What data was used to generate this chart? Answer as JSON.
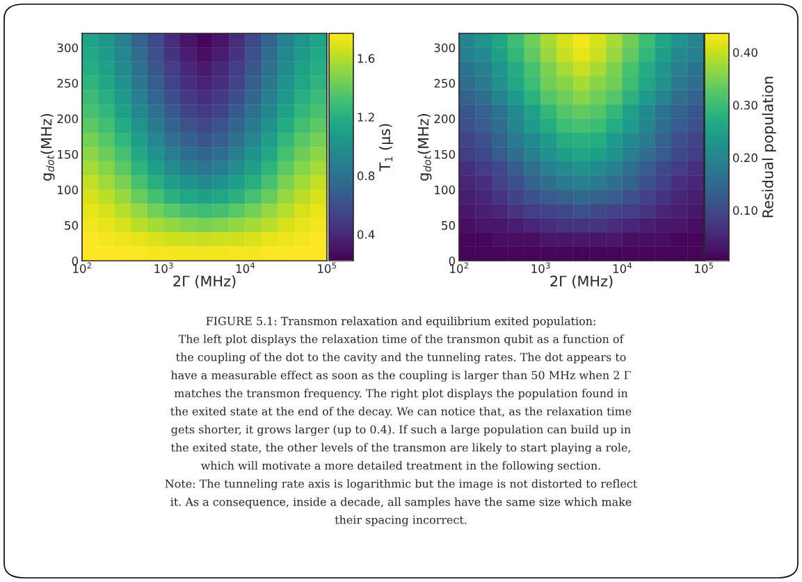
{
  "chart_data": [
    {
      "type": "heatmap",
      "xlabel": "2Γ (MHz)",
      "ylabel": "g$_{dot}$(MHz)",
      "clabel": "T$_{1}$ (μs)",
      "log": "x",
      "xlim": [
        100,
        100000
      ],
      "xticks": [
        {
          "value": 100,
          "label": "10$^{2}$"
        },
        {
          "value": 1000,
          "label": "10$^{3}$"
        },
        {
          "value": 10000,
          "label": "10$^{4}$"
        },
        {
          "value": 100000,
          "label": "10$^{5}$"
        }
      ],
      "ylim": [
        0,
        320
      ],
      "yticks": [
        0,
        50,
        100,
        150,
        200,
        250,
        300
      ],
      "clim": [
        0.22,
        1.77
      ],
      "cticks": [
        0.4,
        0.8,
        1.2,
        1.6
      ],
      "x": [
        126,
        200,
        316,
        501,
        794,
        1260,
        2000,
        3160,
        5010,
        7940,
        12600,
        20000,
        31600,
        50100,
        79400
      ],
      "y": [
        310,
        290,
        270,
        250,
        230,
        210,
        190,
        170,
        150,
        130,
        110,
        90,
        70,
        50,
        30,
        10
      ],
      "cells": [
        [
          1.12,
          1.03,
          0.9,
          0.72,
          0.57,
          0.42,
          0.3,
          0.24,
          0.3,
          0.42,
          0.57,
          0.72,
          0.9,
          1.03,
          1.12
        ],
        [
          1.15,
          1.06,
          0.93,
          0.76,
          0.6,
          0.45,
          0.34,
          0.28,
          0.34,
          0.45,
          0.6,
          0.76,
          0.93,
          1.06,
          1.15
        ],
        [
          1.18,
          1.1,
          0.97,
          0.8,
          0.64,
          0.5,
          0.39,
          0.33,
          0.39,
          0.5,
          0.64,
          0.8,
          0.97,
          1.1,
          1.18
        ],
        [
          1.22,
          1.14,
          1.01,
          0.84,
          0.68,
          0.54,
          0.43,
          0.37,
          0.43,
          0.54,
          0.68,
          0.84,
          1.01,
          1.14,
          1.22
        ],
        [
          1.27,
          1.19,
          1.06,
          0.89,
          0.73,
          0.59,
          0.48,
          0.42,
          0.48,
          0.59,
          0.73,
          0.89,
          1.06,
          1.19,
          1.27
        ],
        [
          1.32,
          1.24,
          1.11,
          0.94,
          0.79,
          0.65,
          0.54,
          0.48,
          0.54,
          0.65,
          0.79,
          0.94,
          1.11,
          1.24,
          1.32
        ],
        [
          1.38,
          1.3,
          1.17,
          1.01,
          0.86,
          0.72,
          0.61,
          0.55,
          0.61,
          0.72,
          0.86,
          1.01,
          1.17,
          1.3,
          1.38
        ],
        [
          1.44,
          1.36,
          1.24,
          1.08,
          0.93,
          0.79,
          0.69,
          0.63,
          0.69,
          0.79,
          0.93,
          1.08,
          1.24,
          1.36,
          1.44
        ],
        [
          1.5,
          1.42,
          1.31,
          1.15,
          1.01,
          0.88,
          0.77,
          0.72,
          0.77,
          0.88,
          1.01,
          1.15,
          1.31,
          1.42,
          1.5
        ],
        [
          1.56,
          1.49,
          1.38,
          1.23,
          1.1,
          0.98,
          0.88,
          0.83,
          0.88,
          0.98,
          1.1,
          1.23,
          1.38,
          1.49,
          1.56
        ],
        [
          1.62,
          1.55,
          1.46,
          1.32,
          1.2,
          1.09,
          1.01,
          0.96,
          1.01,
          1.09,
          1.2,
          1.32,
          1.46,
          1.55,
          1.62
        ],
        [
          1.67,
          1.61,
          1.53,
          1.41,
          1.31,
          1.21,
          1.14,
          1.1,
          1.14,
          1.21,
          1.31,
          1.41,
          1.53,
          1.61,
          1.67
        ],
        [
          1.71,
          1.67,
          1.6,
          1.52,
          1.44,
          1.37,
          1.31,
          1.28,
          1.31,
          1.37,
          1.44,
          1.52,
          1.6,
          1.67,
          1.71
        ],
        [
          1.74,
          1.71,
          1.67,
          1.61,
          1.56,
          1.52,
          1.48,
          1.46,
          1.48,
          1.52,
          1.56,
          1.61,
          1.67,
          1.71,
          1.74
        ],
        [
          1.76,
          1.75,
          1.73,
          1.71,
          1.68,
          1.66,
          1.65,
          1.64,
          1.65,
          1.66,
          1.68,
          1.71,
          1.73,
          1.75,
          1.76
        ],
        [
          1.77,
          1.77,
          1.76,
          1.76,
          1.75,
          1.75,
          1.74,
          1.74,
          1.74,
          1.75,
          1.75,
          1.76,
          1.76,
          1.77,
          1.77
        ]
      ],
      "annotations": [
        "FIGURE 5.1: Transmon relaxation and equilibrium exited population:",
        "The left plot displays the relaxation time of the transmon qubit as a function of",
        "the coupling of the dot to the cavity and the tunneling rates. The dot appears to",
        "have a measurable effect as soon as the coupling is larger than 50 MHz when 2 Γ",
        "matches the transmon frequency. The right plot displays the population found in",
        "the exited state at the end of the decay. We can notice that, as the relaxation time",
        "gets shorter, it grows larger (up to 0.4). If such a large population can build up in",
        "the exited state, the other levels of the transmon are likely to start playing a role,",
        "which will motivate a more detailed treatment in the following section.",
        "Note: The tunneling rate axis is logarithmic but the image is not distorted to reflect",
        "it. As a consequence, inside a decade, all samples have the same size which make",
        "their spacing incorrect."
      ]
    },
    {
      "type": "heatmap",
      "xlabel": "2Γ (MHz)",
      "ylabel": "g$_{dot}$(MHz)",
      "clabel": "Residual population",
      "log": "x",
      "xlim": [
        100,
        100000
      ],
      "xticks": [
        {
          "value": 100,
          "label": "10$^{2}$"
        },
        {
          "value": 1000,
          "label": "10$^{3}$"
        },
        {
          "value": 10000,
          "label": "10$^{4}$"
        },
        {
          "value": 100000,
          "label": "10$^{5}$"
        }
      ],
      "ylim": [
        0,
        320
      ],
      "yticks": [
        0,
        50,
        100,
        150,
        200,
        250,
        300
      ],
      "clim": [
        0.004,
        0.436
      ],
      "cticks": [
        {
          "value": 0.1,
          "label": "0.10"
        },
        {
          "value": 0.2,
          "label": "0.20"
        },
        {
          "value": 0.3,
          "label": "0.30"
        },
        {
          "value": 0.4,
          "label": "0.40"
        }
      ],
      "x": [
        126,
        200,
        316,
        501,
        794,
        1260,
        2000,
        3160,
        5010,
        7940,
        12600,
        20000,
        31600,
        50100,
        79400
      ],
      "y": [
        310,
        290,
        270,
        250,
        230,
        210,
        190,
        170,
        150,
        130,
        110,
        90,
        70,
        50,
        30,
        10
      ],
      "cells": [
        [
          0.2,
          0.22,
          0.26,
          0.3,
          0.34,
          0.38,
          0.41,
          0.43,
          0.41,
          0.38,
          0.34,
          0.3,
          0.26,
          0.22,
          0.2
        ],
        [
          0.19,
          0.21,
          0.25,
          0.29,
          0.33,
          0.37,
          0.4,
          0.42,
          0.4,
          0.37,
          0.33,
          0.29,
          0.25,
          0.21,
          0.19
        ],
        [
          0.17,
          0.19,
          0.23,
          0.27,
          0.31,
          0.35,
          0.38,
          0.4,
          0.38,
          0.35,
          0.31,
          0.27,
          0.23,
          0.19,
          0.17
        ],
        [
          0.16,
          0.18,
          0.22,
          0.26,
          0.3,
          0.34,
          0.36,
          0.38,
          0.36,
          0.34,
          0.3,
          0.26,
          0.22,
          0.18,
          0.16
        ],
        [
          0.14,
          0.16,
          0.2,
          0.24,
          0.28,
          0.32,
          0.34,
          0.36,
          0.34,
          0.32,
          0.28,
          0.24,
          0.2,
          0.16,
          0.14
        ],
        [
          0.12,
          0.14,
          0.17,
          0.21,
          0.25,
          0.29,
          0.32,
          0.33,
          0.32,
          0.29,
          0.25,
          0.21,
          0.17,
          0.14,
          0.12
        ],
        [
          0.11,
          0.13,
          0.16,
          0.2,
          0.24,
          0.27,
          0.3,
          0.31,
          0.3,
          0.27,
          0.24,
          0.2,
          0.16,
          0.13,
          0.11
        ],
        [
          0.09,
          0.11,
          0.14,
          0.18,
          0.21,
          0.24,
          0.27,
          0.28,
          0.27,
          0.24,
          0.21,
          0.18,
          0.14,
          0.11,
          0.09
        ],
        [
          0.08,
          0.1,
          0.13,
          0.16,
          0.19,
          0.22,
          0.25,
          0.26,
          0.25,
          0.22,
          0.19,
          0.16,
          0.13,
          0.1,
          0.08
        ],
        [
          0.06,
          0.08,
          0.1,
          0.13,
          0.16,
          0.19,
          0.21,
          0.22,
          0.21,
          0.19,
          0.16,
          0.13,
          0.1,
          0.08,
          0.06
        ],
        [
          0.05,
          0.06,
          0.09,
          0.11,
          0.14,
          0.16,
          0.18,
          0.19,
          0.18,
          0.16,
          0.14,
          0.11,
          0.09,
          0.06,
          0.05
        ],
        [
          0.04,
          0.05,
          0.07,
          0.09,
          0.11,
          0.13,
          0.14,
          0.15,
          0.14,
          0.13,
          0.11,
          0.09,
          0.07,
          0.05,
          0.04
        ],
        [
          0.03,
          0.04,
          0.05,
          0.07,
          0.08,
          0.09,
          0.1,
          0.11,
          0.1,
          0.09,
          0.08,
          0.07,
          0.05,
          0.04,
          0.03
        ],
        [
          0.02,
          0.03,
          0.03,
          0.04,
          0.05,
          0.06,
          0.07,
          0.07,
          0.07,
          0.06,
          0.05,
          0.04,
          0.03,
          0.03,
          0.02
        ],
        [
          0.01,
          0.01,
          0.02,
          0.02,
          0.02,
          0.03,
          0.03,
          0.03,
          0.03,
          0.03,
          0.02,
          0.02,
          0.02,
          0.01,
          0.01
        ],
        [
          0.01,
          0.01,
          0.01,
          0.01,
          0.01,
          0.01,
          0.01,
          0.01,
          0.01,
          0.01,
          0.01,
          0.01,
          0.01,
          0.01,
          0.01
        ]
      ]
    }
  ]
}
